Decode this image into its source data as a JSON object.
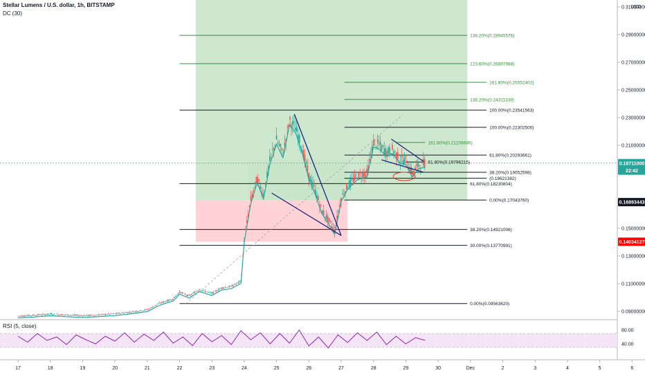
{
  "header": {
    "title": "Stellar Lumens / U.S. dollar, 1h, BITSTAMP",
    "indicator": "DC (30)",
    "currency": "USD"
  },
  "rsi": {
    "label": "RSI (5, close)",
    "ticks": [
      "80.00",
      "40.00"
    ],
    "band": [
      30,
      70
    ]
  },
  "price_badges": [
    {
      "text": "0.19711000",
      "value": 0.19711,
      "color": "#26a69a"
    },
    {
      "text": "22:42",
      "value": 0.1917,
      "color": "#26a69a"
    },
    {
      "text": "0.16893443",
      "value": 0.16893443,
      "color": "#131722"
    },
    {
      "text": "0.14034127",
      "value": 0.14034127,
      "color": "#ff0000"
    }
  ],
  "colors": {
    "green_zone": "#c8e6c9",
    "red_zone": "#ffcdd2",
    "dc_line": "#26a69a",
    "trend": "#1a237e",
    "fib_green": "#388e3c",
    "rsi_line": "#8e24aa",
    "rsi_band": "#f3e5f5"
  },
  "chart_data": {
    "type": "line",
    "title": "Stellar Lumens / U.S. dollar, 1h, BITSTAMP",
    "x_ticks": [
      "17",
      "18",
      "19",
      "20",
      "21",
      "22",
      "23",
      "24",
      "25",
      "26",
      "27",
      "28",
      "29",
      "30",
      "Dec",
      "2",
      "3",
      "4",
      "5",
      "6"
    ],
    "y_ticks": [
      "0.31000000",
      "0.29000000",
      "0.27000000",
      "0.25000000",
      "0.23000000",
      "0.21000000",
      "0.19000000",
      "0.17000000",
      "0.15000000",
      "0.13000000",
      "0.11000000",
      "0.09000000"
    ],
    "ylim": [
      0.084,
      0.315
    ],
    "price_path": [
      [
        17.0,
        0.0866
      ],
      [
        17.5,
        0.0872
      ],
      [
        18.0,
        0.0881
      ],
      [
        18.5,
        0.0874
      ],
      [
        19.0,
        0.0869
      ],
      [
        19.5,
        0.0875
      ],
      [
        20.0,
        0.0882
      ],
      [
        20.5,
        0.0896
      ],
      [
        21.0,
        0.0912
      ],
      [
        21.4,
        0.096
      ],
      [
        21.8,
        0.099
      ],
      [
        22.0,
        0.104
      ],
      [
        22.3,
        0.101
      ],
      [
        22.6,
        0.106
      ],
      [
        23.0,
        0.103
      ],
      [
        23.3,
        0.107
      ],
      [
        23.6,
        0.108
      ],
      [
        23.9,
        0.112
      ],
      [
        24.0,
        0.142
      ],
      [
        24.2,
        0.17
      ],
      [
        24.4,
        0.186
      ],
      [
        24.6,
        0.174
      ],
      [
        24.8,
        0.2
      ],
      [
        25.0,
        0.214
      ],
      [
        25.2,
        0.204
      ],
      [
        25.4,
        0.228
      ],
      [
        25.6,
        0.222
      ],
      [
        25.8,
        0.207
      ],
      [
        26.0,
        0.188
      ],
      [
        26.2,
        0.177
      ],
      [
        26.4,
        0.163
      ],
      [
        26.6,
        0.156
      ],
      [
        26.8,
        0.148
      ],
      [
        27.0,
        0.172
      ],
      [
        27.2,
        0.181
      ],
      [
        27.5,
        0.188
      ],
      [
        27.8,
        0.19
      ],
      [
        28.0,
        0.212
      ],
      [
        28.2,
        0.21
      ],
      [
        28.4,
        0.205
      ],
      [
        28.6,
        0.207
      ],
      [
        28.8,
        0.2
      ],
      [
        29.0,
        0.199
      ],
      [
        29.2,
        0.19
      ],
      [
        29.4,
        0.196
      ],
      [
        29.6,
        0.1971
      ]
    ],
    "rsi_path": [
      [
        17.0,
        62
      ],
      [
        17.3,
        45
      ],
      [
        17.6,
        70
      ],
      [
        17.9,
        50
      ],
      [
        18.2,
        60
      ],
      [
        18.5,
        38
      ],
      [
        18.8,
        66
      ],
      [
        19.1,
        52
      ],
      [
        19.4,
        40
      ],
      [
        19.7,
        62
      ],
      [
        20.0,
        48
      ],
      [
        20.3,
        72
      ],
      [
        20.6,
        45
      ],
      [
        20.9,
        68
      ],
      [
        21.2,
        50
      ],
      [
        21.5,
        74
      ],
      [
        21.8,
        42
      ],
      [
        22.1,
        60
      ],
      [
        22.4,
        35
      ],
      [
        22.7,
        70
      ],
      [
        23.0,
        46
      ],
      [
        23.3,
        64
      ],
      [
        23.6,
        38
      ],
      [
        23.9,
        78
      ],
      [
        24.2,
        52
      ],
      [
        24.5,
        72
      ],
      [
        24.8,
        40
      ],
      [
        25.1,
        70
      ],
      [
        25.4,
        42
      ],
      [
        25.7,
        80
      ],
      [
        26.0,
        34
      ],
      [
        26.3,
        60
      ],
      [
        26.6,
        28
      ],
      [
        26.9,
        66
      ],
      [
        27.2,
        44
      ],
      [
        27.5,
        72
      ],
      [
        27.8,
        50
      ],
      [
        28.1,
        74
      ],
      [
        28.4,
        38
      ],
      [
        28.7,
        62
      ],
      [
        29.0,
        40
      ],
      [
        29.3,
        58
      ],
      [
        29.6,
        50
      ]
    ],
    "zones": [
      {
        "type": "green",
        "x0": 22.5,
        "x1": 30.9,
        "y0": 0.1704376,
        "y1": 0.33
      },
      {
        "type": "green",
        "x0": 24.1,
        "x1": 27.2,
        "y0": 0.1704376,
        "y1": 0.1995
      },
      {
        "type": "red",
        "x0": 22.5,
        "x1": 27.2,
        "y0": 0.1403,
        "y1": 0.1704376
      }
    ],
    "fib_levels": [
      {
        "label": "138.20%(0.28945576)",
        "y": 0.28945576,
        "x0": 22.0,
        "x1": 30.9,
        "color": "#388e3c"
      },
      {
        "label": "123.60%(0.26897988)",
        "y": 0.26897988,
        "x0": 22.0,
        "x1": 30.9,
        "color": "#388e3c"
      },
      {
        "label": "161.80%(0.25552402)",
        "y": 0.25552402,
        "x0": 27.1,
        "x1": 31.5,
        "color": "#388e3c"
      },
      {
        "label": "138.20%(0.24311339)",
        "y": 0.24311339,
        "x0": 27.1,
        "x1": 30.9,
        "color": "#388e3c"
      },
      {
        "label": "100.00%(0.23541563)",
        "y": 0.23541563,
        "x0": 22.0,
        "x1": 31.5,
        "color": "#131722"
      },
      {
        "label": "100.00%(0.22302500)",
        "y": 0.223025,
        "x0": 27.1,
        "x1": 31.5,
        "color": "#131722"
      },
      {
        "label": "161.80%(0.21206686)",
        "y": 0.21206686,
        "x0": 28.7,
        "x1": 29.6,
        "color": "#388e3c"
      },
      {
        "label": "61.80%(0.20293661)",
        "y": 0.20293661,
        "x0": 27.1,
        "x1": 31.5,
        "color": "#131722"
      },
      {
        "label": "61.80%(0.19796215)",
        "y": 0.19796215,
        "x0": 29.0,
        "x1": 29.6,
        "color": "#131722"
      },
      {
        "label": "38.20%(0.19052598)",
        "y": 0.19052598,
        "x0": 27.1,
        "x1": 31.5,
        "color": "#131722"
      },
      {
        "label": "(0.18621382)",
        "y": 0.18621382,
        "x0": 27.1,
        "x1": 31.5,
        "color": "#131722"
      },
      {
        "label": "61.80%(0.18230804)",
        "y": 0.18230804,
        "x0": 22.0,
        "x1": 30.9,
        "color": "#131722"
      },
      {
        "label": "0.00%(0.17043760)",
        "y": 0.1704376,
        "x0": 27.1,
        "x1": 31.5,
        "color": "#131722"
      },
      {
        "label": "38.20%(0.14921006)",
        "y": 0.14921006,
        "x0": 22.0,
        "x1": 30.9,
        "color": "#131722"
      },
      {
        "label": "30.00%(0.13770991)",
        "y": 0.13770991,
        "x0": 22.0,
        "x1": 30.9,
        "color": "#131722"
      },
      {
        "label": "0.00%(0.09563620)",
        "y": 0.0956362,
        "x0": 22.0,
        "x1": 30.9,
        "color": "#131722"
      }
    ],
    "trendlines": [
      {
        "x0": 25.55,
        "y0": 0.2325,
        "x1": 27.0,
        "y1": 0.1448
      },
      {
        "x0": 24.85,
        "y0": 0.1755,
        "x1": 27.0,
        "y1": 0.1448
      },
      {
        "x0": 28.55,
        "y0": 0.2145,
        "x1": 29.55,
        "y1": 0.1983
      },
      {
        "x0": 28.25,
        "y0": 0.1995,
        "x1": 29.55,
        "y1": 0.1905
      }
    ]
  }
}
